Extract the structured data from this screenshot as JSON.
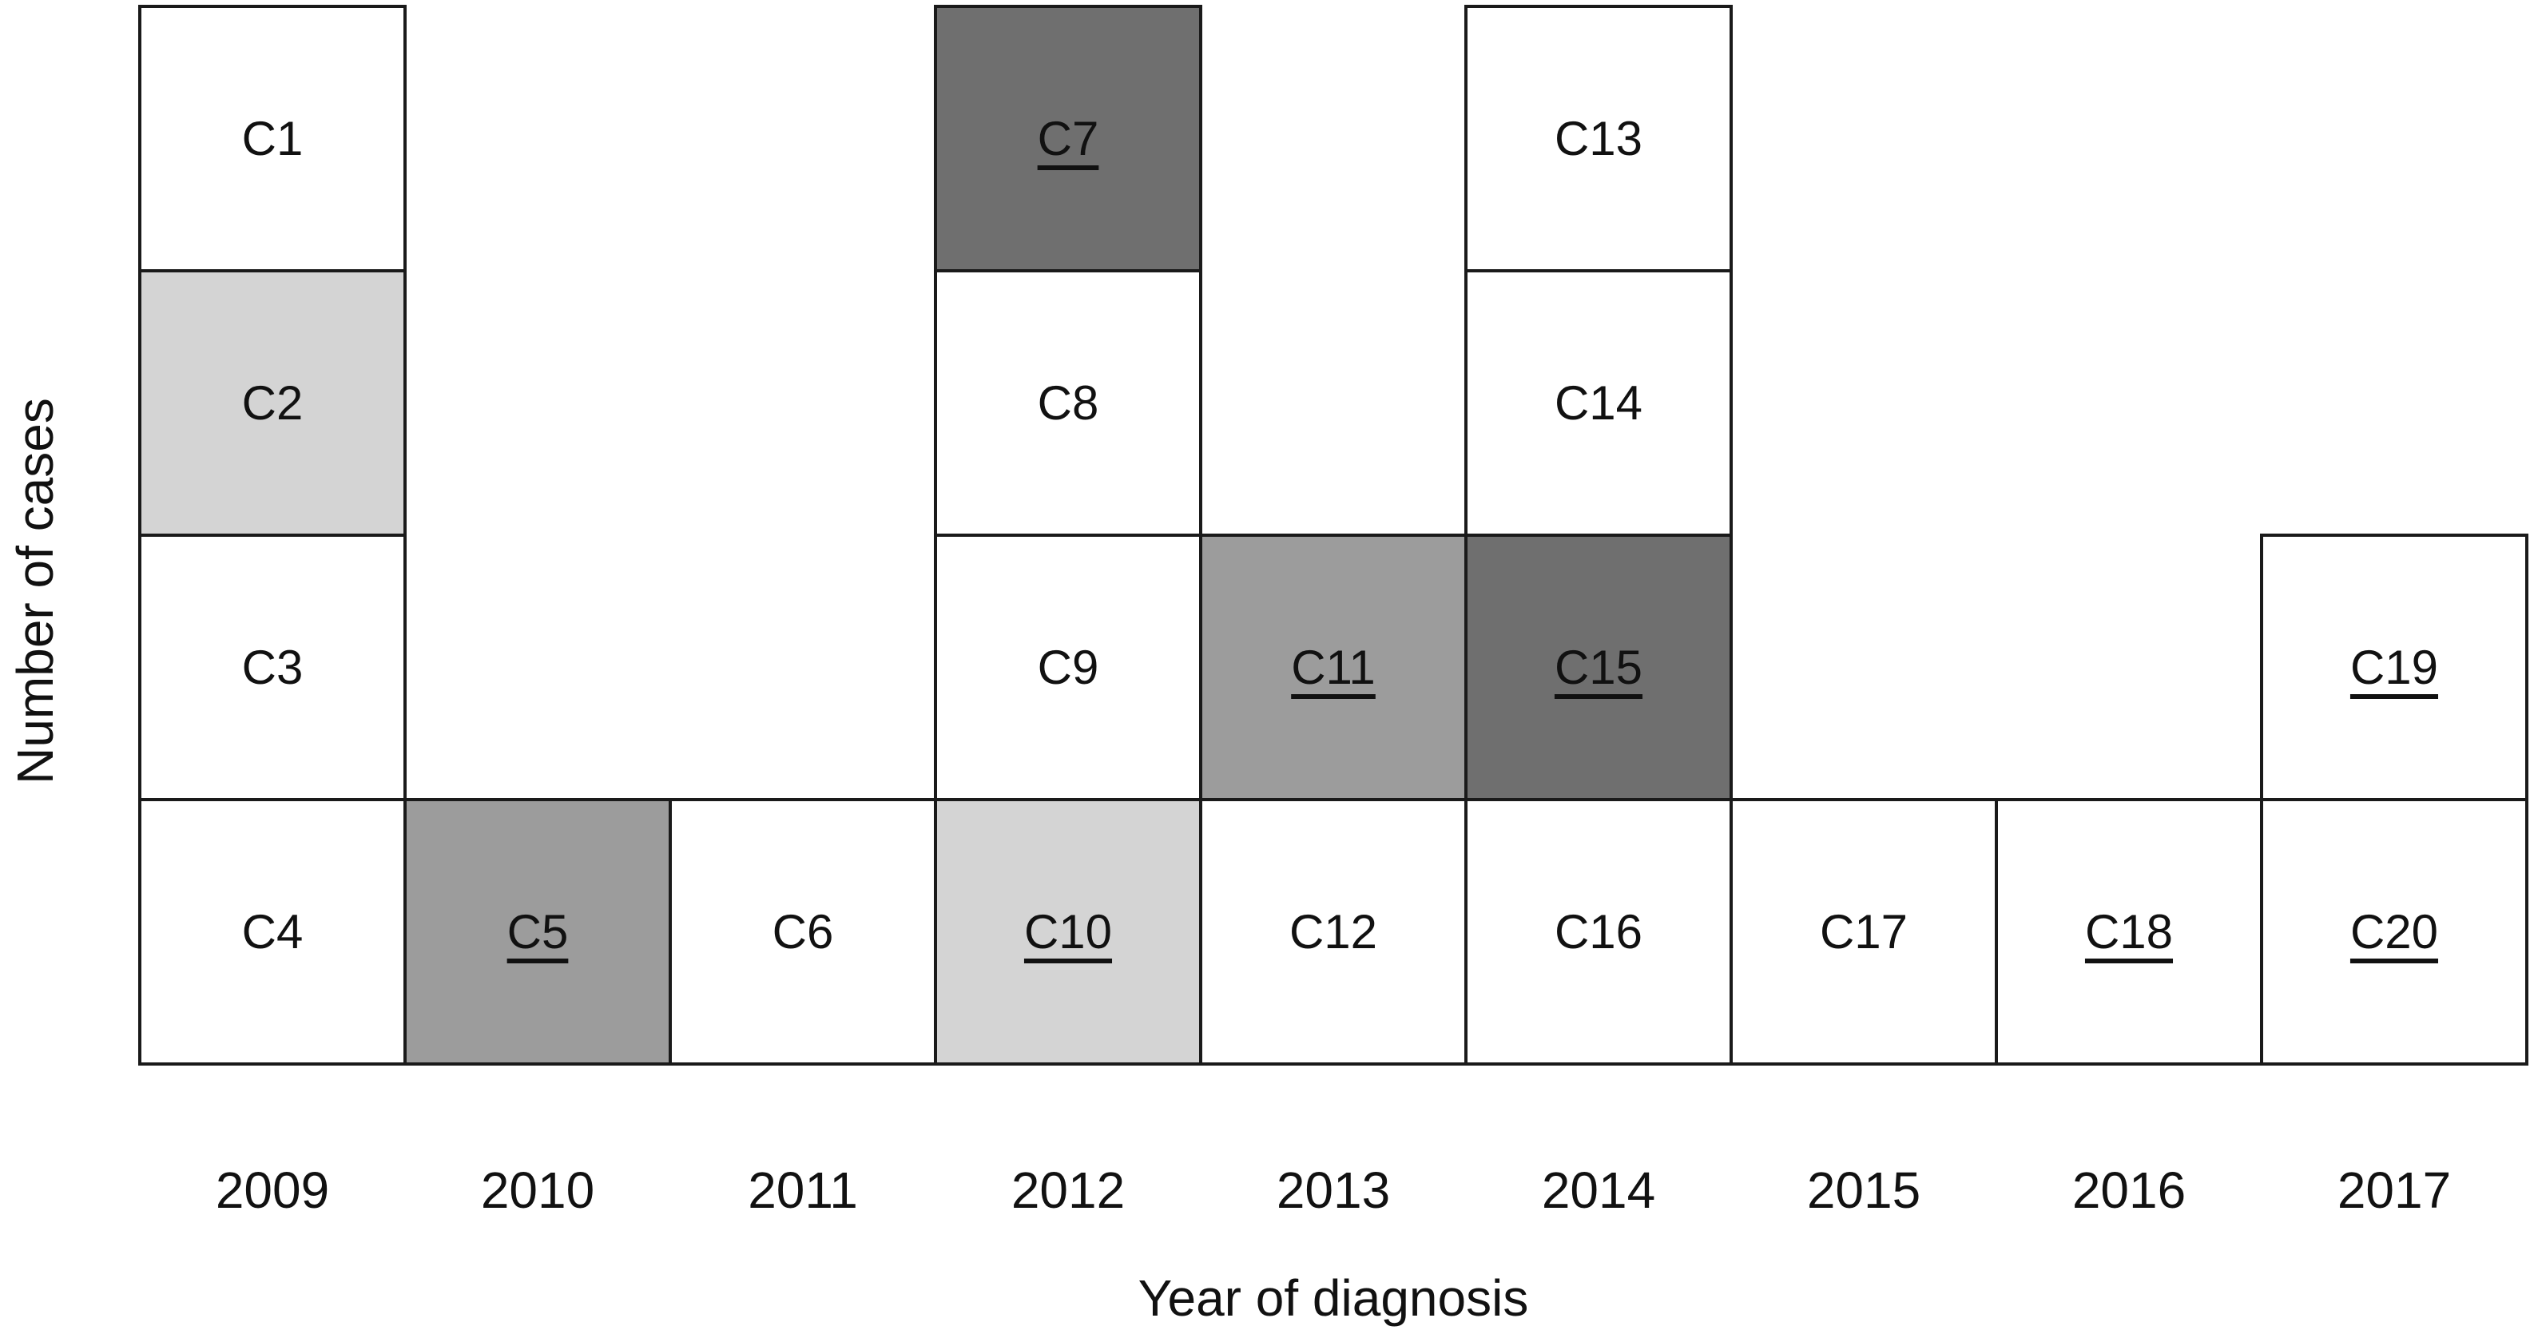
{
  "chart_data": {
    "type": "bar",
    "title": "",
    "xlabel": "Year of diagnosis",
    "ylabel": "Number of cases",
    "categories": [
      "2009",
      "2010",
      "2011",
      "2012",
      "2013",
      "2014",
      "2015",
      "2016",
      "2017"
    ],
    "values": [
      4,
      1,
      1,
      4,
      2,
      4,
      1,
      1,
      2
    ],
    "ylim": [
      0,
      4
    ],
    "grid": false,
    "legend": false,
    "unit_chart": true,
    "shade_colors": {
      "white": "#ffffff",
      "light": "#d4d4d4",
      "medium": "#9c9c9c",
      "dark": "#6f6f6f"
    },
    "border_color": "#1a1a1a",
    "cases": [
      {
        "label": "C1",
        "year": "2009",
        "stack_position": 4,
        "shade": "white",
        "underlined": false
      },
      {
        "label": "C2",
        "year": "2009",
        "stack_position": 3,
        "shade": "light",
        "underlined": false
      },
      {
        "label": "C3",
        "year": "2009",
        "stack_position": 2,
        "shade": "white",
        "underlined": false
      },
      {
        "label": "C4",
        "year": "2009",
        "stack_position": 1,
        "shade": "white",
        "underlined": false
      },
      {
        "label": "C5",
        "year": "2010",
        "stack_position": 1,
        "shade": "medium",
        "underlined": true
      },
      {
        "label": "C6",
        "year": "2011",
        "stack_position": 1,
        "shade": "white",
        "underlined": false
      },
      {
        "label": "C7",
        "year": "2012",
        "stack_position": 4,
        "shade": "dark",
        "underlined": true
      },
      {
        "label": "C8",
        "year": "2012",
        "stack_position": 3,
        "shade": "white",
        "underlined": false
      },
      {
        "label": "C9",
        "year": "2012",
        "stack_position": 2,
        "shade": "white",
        "underlined": false
      },
      {
        "label": "C10",
        "year": "2012",
        "stack_position": 1,
        "shade": "light",
        "underlined": true
      },
      {
        "label": "C11",
        "year": "2013",
        "stack_position": 2,
        "shade": "medium",
        "underlined": true
      },
      {
        "label": "C12",
        "year": "2013",
        "stack_position": 1,
        "shade": "white",
        "underlined": false
      },
      {
        "label": "C13",
        "year": "2014",
        "stack_position": 4,
        "shade": "white",
        "underlined": false
      },
      {
        "label": "C14",
        "year": "2014",
        "stack_position": 3,
        "shade": "white",
        "underlined": false
      },
      {
        "label": "C15",
        "year": "2014",
        "stack_position": 2,
        "shade": "dark",
        "underlined": true
      },
      {
        "label": "C16",
        "year": "2014",
        "stack_position": 1,
        "shade": "white",
        "underlined": false
      },
      {
        "label": "C17",
        "year": "2015",
        "stack_position": 1,
        "shade": "white",
        "underlined": false
      },
      {
        "label": "C18",
        "year": "2016",
        "stack_position": 1,
        "shade": "white",
        "underlined": true
      },
      {
        "label": "C19",
        "year": "2017",
        "stack_position": 2,
        "shade": "white",
        "underlined": true
      },
      {
        "label": "C20",
        "year": "2017",
        "stack_position": 1,
        "shade": "white",
        "underlined": true
      }
    ]
  }
}
